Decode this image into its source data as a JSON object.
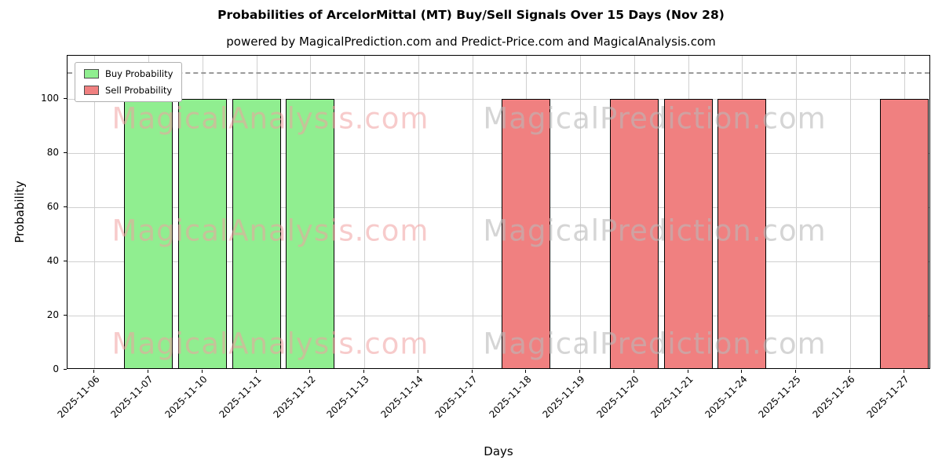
{
  "title": "Probabilities of ArcelorMittal (MT) Buy/Sell Signals Over 15 Days (Nov 28)",
  "subtitle": "powered by MagicalPrediction.com and Predict-Price.com and MagicalAnalysis.com",
  "watermarks": {
    "left_text": "MagicalAnalysis.com",
    "right_text": "MagicalPrediction.com",
    "left_color": "rgba(240, 160, 160, 0.55)",
    "right_color": "rgba(185, 185, 185, 0.6)"
  },
  "chart_data": {
    "type": "bar",
    "title": "Probabilities of ArcelorMittal (MT) Buy/Sell Signals Over 15 Days (Nov 28)",
    "xlabel": "Days",
    "ylabel": "Probability",
    "categories": [
      "2025-11-06",
      "2025-11-07",
      "2025-11-10",
      "2025-11-11",
      "2025-11-12",
      "2025-11-13",
      "2025-11-14",
      "2025-11-17",
      "2025-11-18",
      "2025-11-19",
      "2025-11-20",
      "2025-11-21",
      "2025-11-24",
      "2025-11-25",
      "2025-11-26",
      "2025-11-27"
    ],
    "series": [
      {
        "name": "Buy Probability",
        "color": "#90ee90",
        "edge_color": "#000000",
        "values": [
          0,
          100,
          100,
          100,
          100,
          0,
          0,
          0,
          0,
          0,
          0,
          0,
          0,
          0,
          0,
          0
        ]
      },
      {
        "name": "Sell Probability",
        "color": "#f08080",
        "edge_color": "#000000",
        "values": [
          0,
          0,
          0,
          0,
          0,
          0,
          0,
          0,
          100,
          0,
          100,
          100,
          100,
          0,
          0,
          100
        ]
      }
    ],
    "yticks": [
      0,
      20,
      40,
      60,
      80,
      100
    ],
    "ylim": [
      0,
      116
    ],
    "dashed_line_y": 110,
    "grid": true,
    "legend_position": "upper-left",
    "bar_width_fraction": 0.9
  }
}
